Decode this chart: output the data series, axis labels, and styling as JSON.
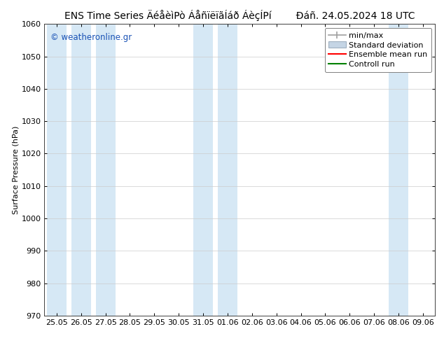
{
  "title_left": "ENS Time Series ÄéåèìPò ÁåñïëïãÍáð ÁèçÍPí",
  "title_right": "Đáñ. 24.05.2024 18 UTC",
  "ylabel": "Surface Pressure (hPa)",
  "ylim": [
    970,
    1060
  ],
  "yticks": [
    970,
    980,
    990,
    1000,
    1010,
    1020,
    1030,
    1040,
    1050,
    1060
  ],
  "xtick_labels": [
    "25.05",
    "26.05",
    "27.05",
    "28.05",
    "29.05",
    "30.05",
    "31.05",
    "01.06",
    "02.06",
    "03.06",
    "04.06",
    "05.06",
    "06.06",
    "07.06",
    "08.06",
    "09.06"
  ],
  "shaded_indices": [
    0,
    1,
    2,
    6,
    7,
    14
  ],
  "shaded_color": "#d6e8f5",
  "background_color": "#ffffff",
  "plot_bg_color": "#ffffff",
  "watermark": "© weatheronline.gr",
  "watermark_color": "#1a52b5",
  "legend_labels": [
    "min/max",
    "Standard deviation",
    "Ensemble mean run",
    "Controll run"
  ],
  "legend_colors": [
    "#a0a0a0",
    "#c5d5e5",
    "#ff0000",
    "#008000"
  ],
  "title_fontsize": 10,
  "tick_fontsize": 8,
  "ylabel_fontsize": 8,
  "legend_fontsize": 8,
  "grid_color": "#cccccc",
  "spine_color": "#404040",
  "tick_color": "#000000"
}
